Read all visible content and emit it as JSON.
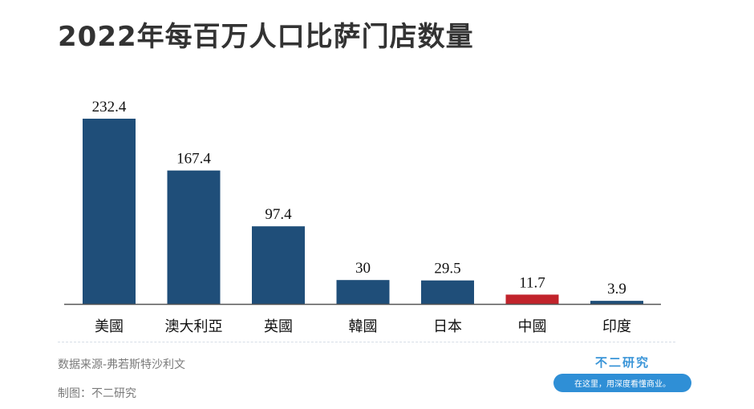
{
  "title": "2022年每百万人口比萨门店数量",
  "source": "数据来源-弗若斯特沙利文",
  "maker": "制图：不二研究",
  "brand": {
    "name": "不二研究",
    "tagline": "在这里，用深度看懂商业。"
  },
  "colors": {
    "bar": "#1f4e79",
    "highlight": "#c1232b",
    "axis": "#555555",
    "text": "#111111"
  },
  "chart_data": {
    "type": "bar",
    "title": "2022年每百万人口比萨门店数量",
    "xlabel": "",
    "ylabel": "",
    "categories": [
      "美國",
      "澳大利亞",
      "英國",
      "韓國",
      "日本",
      "中國",
      "印度"
    ],
    "values": [
      232.4,
      167.4,
      97.4,
      30,
      29.5,
      11.7,
      3.9
    ],
    "value_labels": [
      "232.4",
      "167.4",
      "97.4",
      "30",
      "29.5",
      "11.7",
      "3.9"
    ],
    "highlight_category": "中國",
    "ylim": [
      0,
      240
    ],
    "grid": false,
    "legend": "none"
  }
}
